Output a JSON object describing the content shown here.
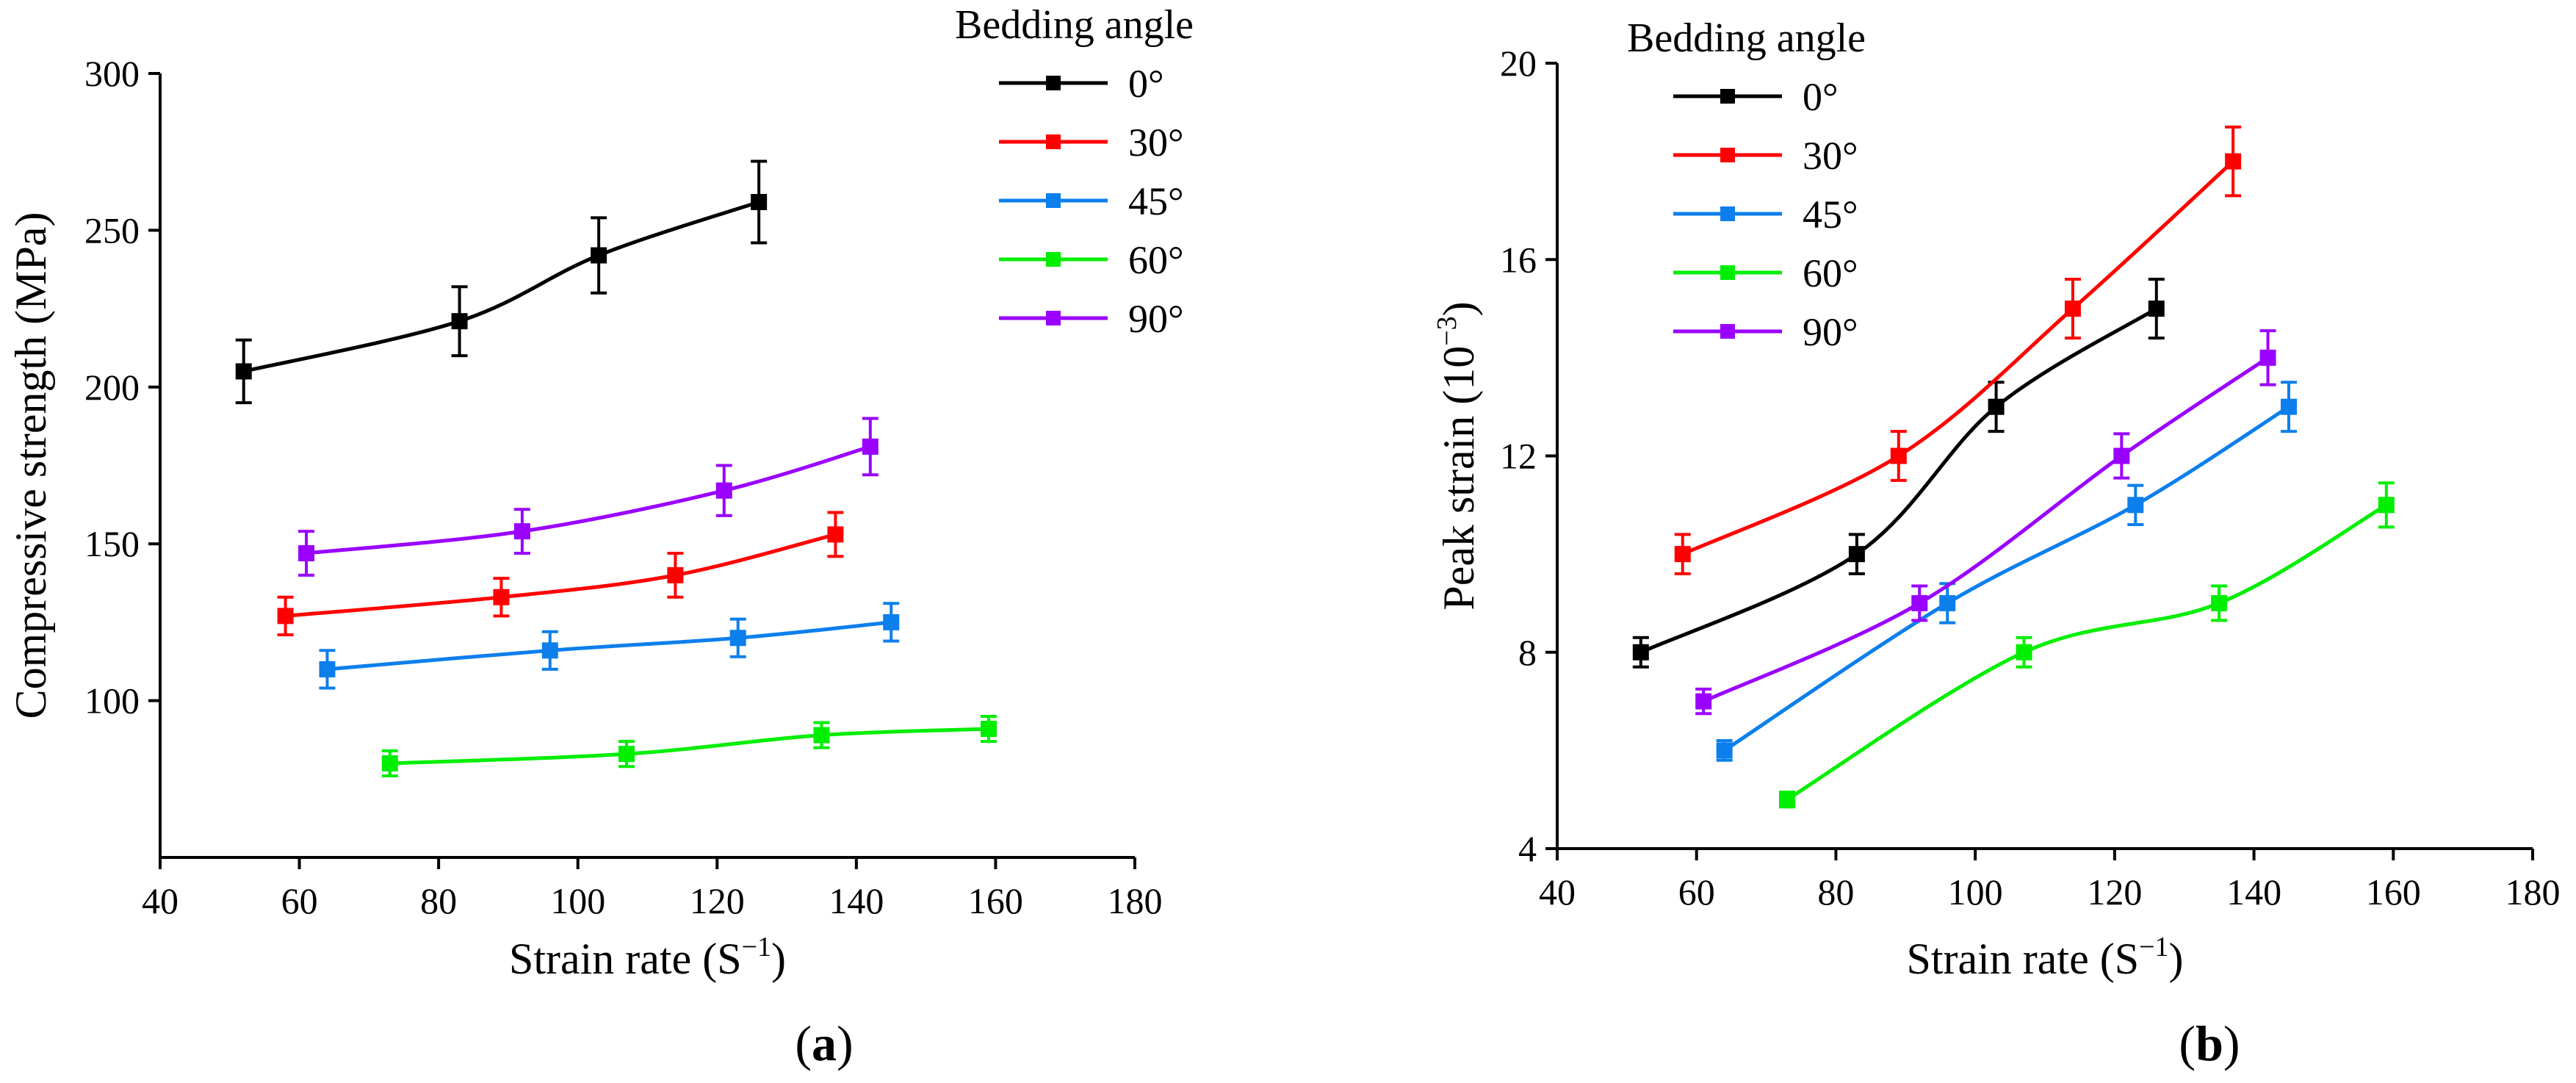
{
  "chart_data": [
    {
      "type": "line",
      "panel_label": "(a)",
      "panel_letter": "a",
      "xlabel": "Strain rate (S",
      "xlabel_sup": "−1",
      "xlabel_close": ")",
      "ylabel": "Compressive strength (MPa)",
      "xlim": [
        40,
        180
      ],
      "ylim": [
        50,
        300
      ],
      "xticks": [
        40,
        60,
        80,
        100,
        120,
        140,
        160,
        180
      ],
      "yticks": [
        100,
        150,
        200,
        250,
        300
      ],
      "legend_title": "Bedding angle",
      "legend_position": "top-right outside",
      "series": [
        {
          "name": "0°",
          "color": "#000000",
          "x": [
            52,
            83,
            103,
            126
          ],
          "y": [
            205,
            221,
            242,
            259
          ],
          "err": [
            10,
            11,
            12,
            13
          ]
        },
        {
          "name": "30°",
          "color": "#ff0000",
          "x": [
            58,
            89,
            114,
            137
          ],
          "y": [
            127,
            133,
            140,
            153
          ],
          "err": [
            6,
            6,
            7,
            7
          ]
        },
        {
          "name": "45°",
          "color": "#0c7fec",
          "x": [
            64,
            96,
            123,
            145
          ],
          "y": [
            110,
            116,
            120,
            125
          ],
          "err": [
            6,
            6,
            6,
            6
          ]
        },
        {
          "name": "60°",
          "color": "#00ee00",
          "x": [
            73,
            107,
            135,
            159
          ],
          "y": [
            80,
            83,
            89,
            91
          ],
          "err": [
            4,
            4,
            4,
            4
          ]
        },
        {
          "name": "90°",
          "color": "#9a00ff",
          "x": [
            61,
            92,
            121,
            142
          ],
          "y": [
            147,
            154,
            167,
            181
          ],
          "err": [
            7,
            7,
            8,
            9
          ]
        }
      ]
    },
    {
      "type": "line",
      "panel_label": "(b)",
      "panel_letter": "b",
      "xlabel": "Strain rate (S",
      "xlabel_sup": "−1",
      "xlabel_close": ")",
      "ylabel": "Peak strain (10",
      "ylabel_sup": "−3",
      "ylabel_close": ")",
      "xlim": [
        40,
        180
      ],
      "ylim": [
        4,
        20
      ],
      "xticks": [
        40,
        60,
        80,
        100,
        120,
        140,
        160,
        180
      ],
      "yticks": [
        4,
        8,
        12,
        16,
        20
      ],
      "legend_title": "Bedding angle",
      "legend_position": "top-left",
      "series": [
        {
          "name": "0°",
          "color": "#000000",
          "x": [
            52,
            83,
            103,
            126
          ],
          "y": [
            8,
            10,
            13,
            15
          ],
          "err": [
            0.3,
            0.4,
            0.5,
            0.6
          ]
        },
        {
          "name": "30°",
          "color": "#ff0000",
          "x": [
            58,
            89,
            114,
            137
          ],
          "y": [
            10,
            12,
            15,
            18
          ],
          "err": [
            0.4,
            0.5,
            0.6,
            0.7
          ]
        },
        {
          "name": "45°",
          "color": "#0c7fec",
          "x": [
            64,
            96,
            123,
            145
          ],
          "y": [
            6,
            9,
            11,
            13
          ],
          "err": [
            0.2,
            0.4,
            0.4,
            0.5
          ]
        },
        {
          "name": "60°",
          "color": "#00ee00",
          "x": [
            73,
            107,
            135,
            159
          ],
          "y": [
            5,
            8,
            9,
            11
          ],
          "err": [
            0.15,
            0.3,
            0.35,
            0.45
          ]
        },
        {
          "name": "90°",
          "color": "#9a00ff",
          "x": [
            61,
            92,
            121,
            142
          ],
          "y": [
            7,
            9,
            12,
            14
          ],
          "err": [
            0.25,
            0.35,
            0.45,
            0.55
          ]
        }
      ]
    }
  ]
}
